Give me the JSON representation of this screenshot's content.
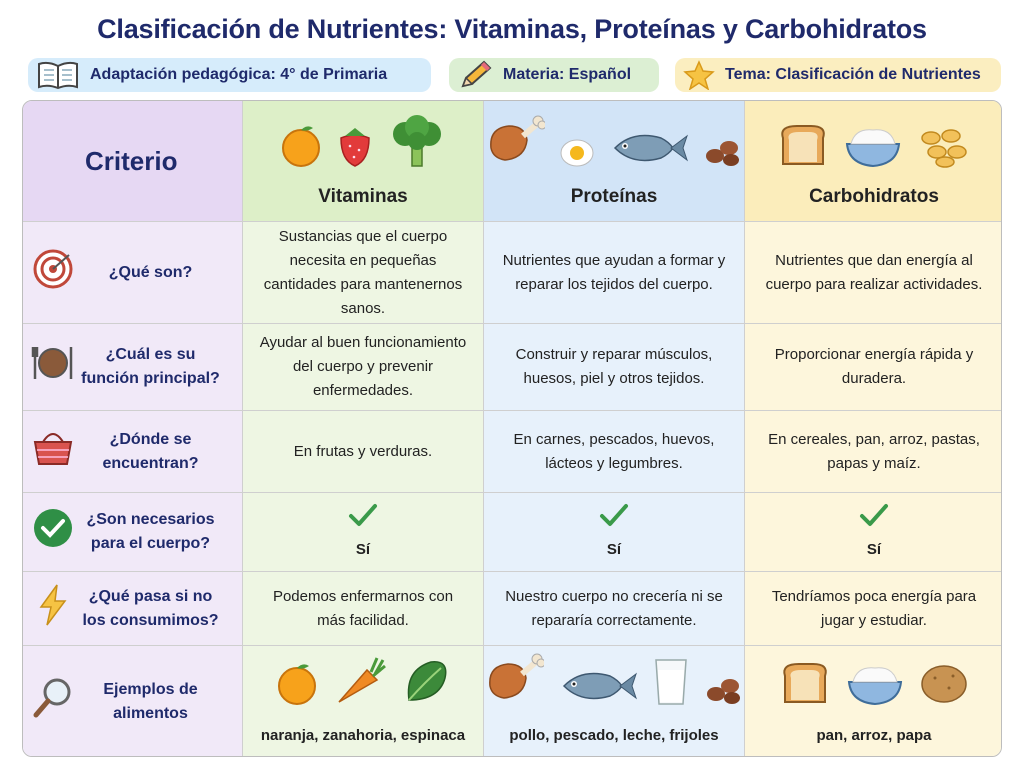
{
  "title": "Clasificación de Nutrientes: Vitaminas, Proteínas y Carbohidratos",
  "badges": [
    "Adaptación pedagógica: 4° de Primaria",
    "Materia: Español",
    "Tema: Clasificación de Nutrientes"
  ],
  "table": {
    "header": [
      "Criterio",
      "Vitaminas",
      "Proteínas",
      "Carbohidratos"
    ],
    "rows": [
      [
        "¿Qué son?",
        "Sustancias que el cuerpo necesita en pequeñas cantidades para mantenernos sanos.",
        "Nutrientes que ayudan a formar y reparar los tejidos del cuerpo.",
        "Nutrientes que dan energía al cuerpo para realizar actividades."
      ],
      [
        "¿Cuál es su función principal?",
        "Ayudar al buen funcionamiento del cuerpo y prevenir enfermedades.",
        "Construir y reparar músculos, huesos, piel y otros tejidos.",
        "Proporcionar energía rápida y duradera."
      ],
      [
        "¿Dónde se encuentran?",
        "En frutas y verduras.",
        "En carnes, pescados, huevos, lácteos y legumbres.",
        "En cereales, pan, arroz, pastas, papas y maíz."
      ],
      [
        "¿Son necesarios para el cuerpo?",
        "Sí",
        "Sí",
        "Sí"
      ],
      [
        "¿Qué pasa si no los consumimos?",
        "Podemos enfermarnos con más facilidad.",
        "Nuestro cuerpo no crecería ni se repararía correctamente.",
        "Tendríamos poca energía para jugar y estudiar."
      ],
      [
        "Ejemplos de alimentos",
        "naranja, zanahoria, espinaca",
        "pollo, pescado, leche, frijoles",
        "pan, arroz, papa"
      ]
    ]
  }
}
